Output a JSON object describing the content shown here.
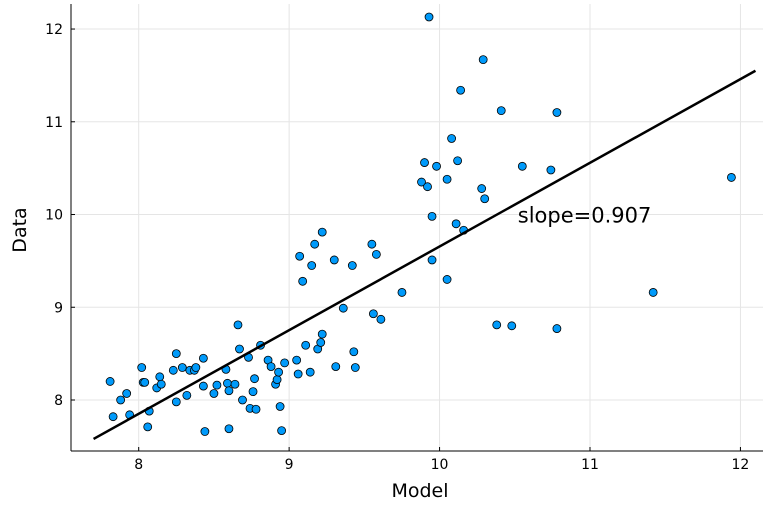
{
  "chart_data": {
    "type": "scatter",
    "title": "",
    "xlabel": "Model",
    "ylabel": "Data",
    "xlim": [
      7.55,
      12.15
    ],
    "ylim": [
      7.45,
      12.27
    ],
    "xticks": [
      8,
      9,
      10,
      11,
      12
    ],
    "yticks": [
      8,
      9,
      10,
      11,
      12
    ],
    "xtick_labels": [
      "8",
      "9",
      "10",
      "11",
      "12"
    ],
    "ytick_labels": [
      "8",
      "9",
      "10",
      "11",
      "12"
    ],
    "grid": true,
    "legend": "none",
    "colors": {
      "points": "#009AFA",
      "point_edge": "#000000",
      "fit_line": "#000000",
      "grid": "#E5E5E5"
    },
    "annotation": {
      "text": "slope=0.907",
      "x": 10.52,
      "y": 9.99
    },
    "fit_line": {
      "x": [
        7.7,
        12.1
      ],
      "y": [
        7.58,
        11.55
      ]
    },
    "points": [
      [
        7.81,
        8.2
      ],
      [
        7.83,
        7.82
      ],
      [
        7.88,
        8.0
      ],
      [
        7.92,
        8.07
      ],
      [
        7.94,
        7.84
      ],
      [
        8.02,
        8.35
      ],
      [
        8.03,
        8.19
      ],
      [
        8.04,
        8.19
      ],
      [
        8.06,
        7.71
      ],
      [
        8.07,
        7.88
      ],
      [
        8.12,
        8.13
      ],
      [
        8.14,
        8.25
      ],
      [
        8.15,
        8.17
      ],
      [
        8.23,
        8.32
      ],
      [
        8.25,
        8.5
      ],
      [
        8.25,
        7.98
      ],
      [
        8.29,
        8.35
      ],
      [
        8.32,
        8.05
      ],
      [
        8.34,
        8.32
      ],
      [
        8.37,
        8.32
      ],
      [
        8.38,
        8.35
      ],
      [
        8.43,
        8.15
      ],
      [
        8.43,
        8.45
      ],
      [
        8.44,
        7.66
      ],
      [
        8.5,
        8.07
      ],
      [
        8.52,
        8.16
      ],
      [
        8.58,
        8.33
      ],
      [
        8.59,
        8.18
      ],
      [
        8.6,
        8.1
      ],
      [
        8.6,
        7.69
      ],
      [
        8.64,
        8.17
      ],
      [
        8.66,
        8.81
      ],
      [
        8.67,
        8.55
      ],
      [
        8.69,
        8.0
      ],
      [
        8.73,
        8.46
      ],
      [
        8.74,
        7.91
      ],
      [
        8.76,
        8.09
      ],
      [
        8.77,
        8.23
      ],
      [
        8.78,
        7.9
      ],
      [
        8.81,
        8.59
      ],
      [
        8.86,
        8.43
      ],
      [
        8.88,
        8.36
      ],
      [
        8.91,
        8.17
      ],
      [
        8.92,
        8.22
      ],
      [
        8.93,
        8.3
      ],
      [
        8.94,
        7.93
      ],
      [
        8.95,
        7.67
      ],
      [
        8.97,
        8.4
      ],
      [
        9.05,
        8.43
      ],
      [
        9.06,
        8.28
      ],
      [
        9.07,
        9.55
      ],
      [
        9.09,
        9.28
      ],
      [
        9.11,
        8.59
      ],
      [
        9.14,
        8.3
      ],
      [
        9.15,
        9.45
      ],
      [
        9.17,
        9.68
      ],
      [
        9.19,
        8.55
      ],
      [
        9.21,
        8.62
      ],
      [
        9.22,
        9.81
      ],
      [
        9.22,
        8.71
      ],
      [
        9.3,
        9.51
      ],
      [
        9.31,
        8.36
      ],
      [
        9.36,
        8.99
      ],
      [
        9.42,
        9.45
      ],
      [
        9.43,
        8.52
      ],
      [
        9.44,
        8.35
      ],
      [
        9.55,
        9.68
      ],
      [
        9.56,
        8.93
      ],
      [
        9.58,
        9.57
      ],
      [
        9.61,
        8.87
      ],
      [
        9.75,
        9.16
      ],
      [
        9.88,
        10.35
      ],
      [
        9.9,
        10.56
      ],
      [
        9.92,
        10.3
      ],
      [
        9.93,
        12.13
      ],
      [
        9.95,
        9.51
      ],
      [
        9.95,
        9.98
      ],
      [
        9.98,
        10.52
      ],
      [
        10.05,
        10.38
      ],
      [
        10.05,
        9.3
      ],
      [
        10.08,
        10.82
      ],
      [
        10.11,
        9.9
      ],
      [
        10.12,
        10.58
      ],
      [
        10.14,
        11.34
      ],
      [
        10.16,
        9.83
      ],
      [
        10.28,
        10.28
      ],
      [
        10.29,
        11.67
      ],
      [
        10.3,
        10.17
      ],
      [
        10.38,
        8.81
      ],
      [
        10.41,
        11.12
      ],
      [
        10.48,
        8.8
      ],
      [
        10.55,
        10.52
      ],
      [
        10.74,
        10.48
      ],
      [
        10.78,
        11.1
      ],
      [
        10.78,
        8.77
      ],
      [
        11.42,
        9.16
      ],
      [
        11.94,
        10.4
      ]
    ]
  }
}
